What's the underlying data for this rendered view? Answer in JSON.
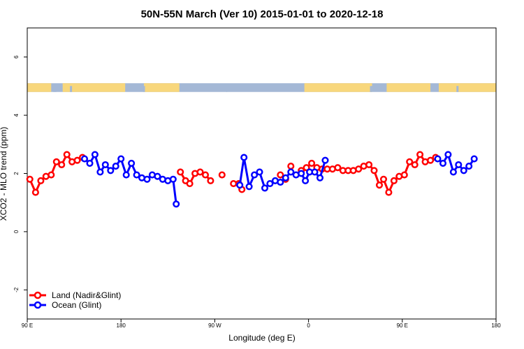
{
  "chart_data": {
    "type": "line",
    "title": "50N-55N March (Ver 10)   2015-01-01 to 2020-12-18",
    "xlabel": "Longitude (deg E)",
    "ylabel": "XCO2 - MLO trend (ppm)",
    "x_tick_values": [
      90,
      180,
      270,
      360,
      450,
      540
    ],
    "x_tick_labels": [
      "90 E",
      "180",
      "90 W",
      "0",
      "90 E",
      "180"
    ],
    "xlim": [
      90,
      540
    ],
    "ylim": [
      -3,
      7
    ],
    "y_ticks": [
      -2,
      0,
      2,
      4,
      6
    ],
    "grid": false,
    "legend_position": "bottom-left",
    "map_strip": {
      "y_range": [
        4.8,
        5.1
      ],
      "land_color": "#f8d77c",
      "ocean_color": "#a4b8d6"
    },
    "series": [
      {
        "name": "Land (Nadir&Glint)",
        "color": "#ff0000",
        "segments": [
          [
            [
              92.5,
              1.8
            ],
            [
              98,
              1.35
            ],
            [
              103,
              1.75
            ],
            [
              108,
              1.9
            ],
            [
              113,
              1.95
            ],
            [
              118,
              2.4
            ],
            [
              123,
              2.3
            ],
            [
              128,
              2.65
            ],
            [
              133,
              2.4
            ],
            [
              138,
              2.45
            ],
            [
              143,
              2.55
            ]
          ],
          [
            [
              237,
              2.05
            ],
            [
              242,
              1.75
            ],
            [
              246,
              1.65
            ],
            [
              251,
              2.0
            ],
            [
              256,
              2.05
            ],
            [
              261,
              1.95
            ],
            [
              266,
              1.75
            ]
          ],
          [
            [
              277,
              1.95
            ]
          ],
          [
            [
              288,
              1.65
            ],
            [
              293,
              1.65
            ],
            [
              296,
              1.45
            ]
          ],
          [
            [
              333,
              1.95
            ],
            [
              338,
              1.8
            ]
          ],
          [
            [
              343,
              2.25
            ]
          ],
          [
            [
              353,
              2.1
            ],
            [
              358,
              2.2
            ],
            [
              363,
              2.35
            ],
            [
              368,
              2.2
            ],
            [
              373,
              2.15
            ],
            [
              378,
              2.15
            ],
            [
              383,
              2.15
            ],
            [
              388,
              2.2
            ],
            [
              393,
              2.1
            ],
            [
              398,
              2.1
            ],
            [
              403,
              2.1
            ],
            [
              408,
              2.15
            ],
            [
              413,
              2.25
            ],
            [
              418,
              2.3
            ],
            [
              423,
              2.1
            ],
            [
              428,
              1.6
            ],
            [
              432,
              1.8
            ],
            [
              437,
              1.35
            ],
            [
              442,
              1.75
            ],
            [
              447,
              1.9
            ],
            [
              452,
              1.95
            ],
            [
              457,
              2.4
            ],
            [
              462,
              2.3
            ],
            [
              467,
              2.65
            ],
            [
              472,
              2.4
            ],
            [
              477,
              2.45
            ],
            [
              482,
              2.55
            ]
          ]
        ]
      },
      {
        "name": "Ocean (Glint)",
        "color": "#0000ff",
        "segments": [
          [
            [
              145,
              2.5
            ],
            [
              150,
              2.35
            ],
            [
              155,
              2.65
            ],
            [
              160,
              2.05
            ],
            [
              165,
              2.3
            ],
            [
              170,
              2.1
            ],
            [
              175,
              2.25
            ],
            [
              180,
              2.5
            ],
            [
              185,
              1.95
            ],
            [
              190,
              2.35
            ],
            [
              195,
              1.95
            ],
            [
              200,
              1.85
            ],
            [
              205,
              1.8
            ],
            [
              210,
              1.95
            ],
            [
              215,
              1.9
            ],
            [
              220,
              1.8
            ],
            [
              225,
              1.75
            ],
            [
              230,
              1.8
            ],
            [
              233,
              0.95
            ]
          ],
          [
            [
              294,
              1.6
            ],
            [
              298,
              2.55
            ],
            [
              303,
              1.55
            ],
            [
              308,
              1.95
            ],
            [
              313,
              2.05
            ],
            [
              318,
              1.5
            ],
            [
              323,
              1.65
            ],
            [
              328,
              1.75
            ],
            [
              333,
              1.7
            ],
            [
              338,
              1.85
            ],
            [
              343,
              2.05
            ],
            [
              348,
              1.95
            ],
            [
              353,
              2.0
            ],
            [
              357,
              1.75
            ],
            [
              361,
              2.05
            ],
            [
              366,
              2.05
            ],
            [
              371,
              1.85
            ],
            [
              376,
              2.45
            ]
          ],
          [
            [
              484,
              2.5
            ],
            [
              489,
              2.35
            ],
            [
              494,
              2.65
            ],
            [
              499,
              2.05
            ],
            [
              504,
              2.3
            ],
            [
              509,
              2.1
            ],
            [
              514,
              2.25
            ],
            [
              519,
              2.5
            ]
          ]
        ]
      }
    ]
  }
}
